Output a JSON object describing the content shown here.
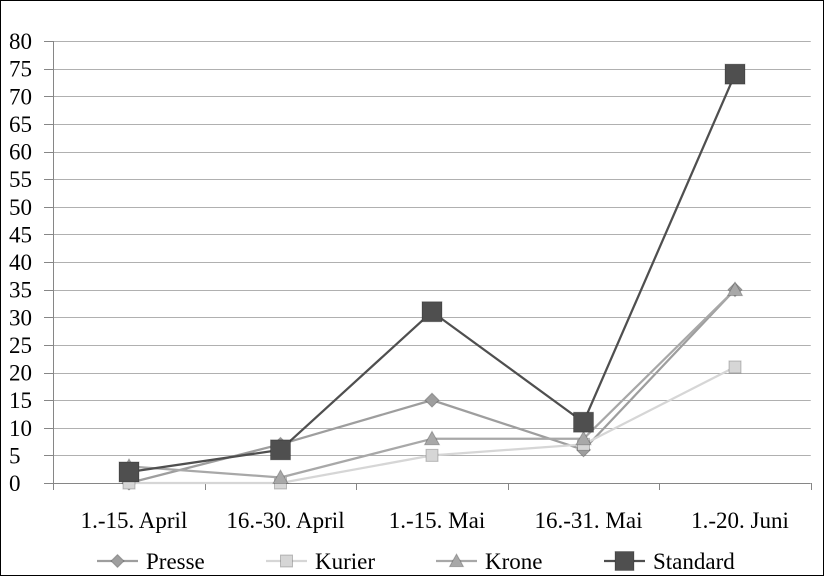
{
  "chart_data": {
    "type": "line",
    "categories": [
      "1.-15. April",
      "16.-30. April",
      "1.-15. Mai",
      "16.-31. Mai",
      "1.-20. Juni"
    ],
    "series": [
      {
        "name": "Presse",
        "values": [
          0,
          7,
          15,
          6,
          35
        ],
        "color": "#9e9e9e",
        "marker": "diamond"
      },
      {
        "name": "Kurier",
        "values": [
          0,
          0,
          5,
          7,
          21
        ],
        "color": "#d6d6d6",
        "marker": "square"
      },
      {
        "name": "Krone",
        "values": [
          3,
          1,
          8,
          8,
          35
        ],
        "color": "#a8a8a8",
        "marker": "triangle"
      },
      {
        "name": "Standard",
        "values": [
          2,
          6,
          31,
          11,
          74
        ],
        "color": "#4f4f4f",
        "marker": "square"
      }
    ],
    "ylim": [
      0,
      80
    ],
    "yticks": [
      0,
      5,
      10,
      15,
      20,
      25,
      30,
      35,
      40,
      45,
      50,
      55,
      60,
      65,
      70,
      75,
      80
    ],
    "grid": true,
    "legend": "bottom"
  },
  "colors": {
    "gridline": "#b0b0b0",
    "axis": "#868686",
    "border": "#000000",
    "background": "#ffffff"
  }
}
